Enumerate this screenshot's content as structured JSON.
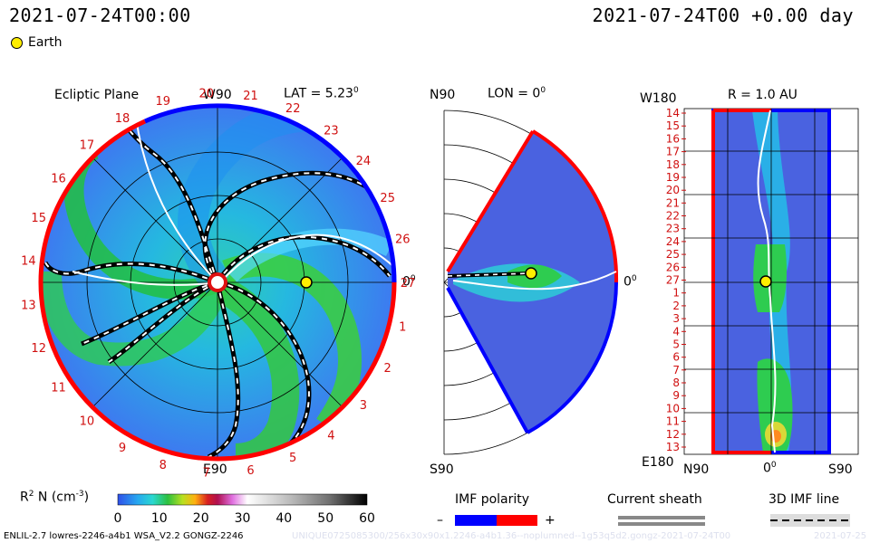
{
  "header": {
    "left_time": "2021-07-24T00:00",
    "right_time": "2021-07-24T00 +0.00 day"
  },
  "legend": {
    "earth_label": "Earth"
  },
  "ecliptic": {
    "title": "Ecliptic Plane",
    "top_label": "W90",
    "bottom_label": "E90",
    "lat_label": "LAT = 5.23",
    "lat_degree_sup": "0",
    "zero_label": "0",
    "zero_sup": "0",
    "rim_numbers": [
      "1",
      "2",
      "3",
      "4",
      "5",
      "6",
      "7",
      "8",
      "9",
      "10",
      "11",
      "12",
      "13",
      "14",
      "15",
      "16",
      "17",
      "18",
      "19",
      "20",
      "21",
      "22",
      "23",
      "24",
      "25",
      "26",
      "27"
    ]
  },
  "meridional": {
    "top_label": "N90",
    "bottom_label": "S90",
    "lon_label": "LON = 0",
    "lon_sup": "0",
    "zero_label": "0",
    "zero_sup": "0"
  },
  "radial": {
    "top_left": "W180",
    "title": "R = 1.0 AU",
    "bottom_left": "E180",
    "x_left": "N90",
    "x_center": "0",
    "x_center_sup": "0",
    "x_right": "S90",
    "rows": [
      "14",
      "15",
      "16",
      "17",
      "18",
      "19",
      "20",
      "21",
      "22",
      "23",
      "24",
      "25",
      "26",
      "27",
      "1",
      "2",
      "3",
      "4",
      "5",
      "6",
      "7",
      "8",
      "9",
      "10",
      "11",
      "12",
      "13"
    ]
  },
  "colorbar": {
    "label_main": "R",
    "label_sup": "2",
    "label_rest": " N (cm",
    "label_exp": "-3",
    "label_close": ")",
    "ticks": [
      "0",
      "10",
      "20",
      "30",
      "40",
      "50",
      "60"
    ],
    "range": [
      0,
      60
    ]
  },
  "key": {
    "imf_title": "IMF polarity",
    "minus": "–",
    "plus": "+",
    "sheath_title": "Current sheath",
    "line_title": "3D IMF line"
  },
  "footer": {
    "model": "ENLIL-2.7 lowres-2246-a4b1 WSA_V2.2 GONGZ-2246",
    "run_id": "UNIQUE0725085300/256x30x90x1.2246-a4b1.36--noplumned--1g53q5d2.gongz-2021-07-24T00",
    "stamp": "2021-07-25"
  },
  "colors": {
    "positive_imf": "#ff0000",
    "negative_imf": "#0000ff",
    "earth": "#ffee00"
  },
  "chart_data": [
    {
      "type": "heatmap",
      "title": "Ecliptic Plane",
      "variable": "R^2 N (cm^-3)",
      "earth": {
        "r_au": 1.0,
        "lon_deg": 0
      }
    },
    {
      "type": "heatmap",
      "title": "LON = 0",
      "yrange": [
        "S90",
        "N90"
      ]
    },
    {
      "type": "heatmap",
      "title": "R = 1.0 AU",
      "xrange": [
        "N90",
        "S90"
      ],
      "yrange": [
        "W180",
        "E180"
      ]
    }
  ]
}
